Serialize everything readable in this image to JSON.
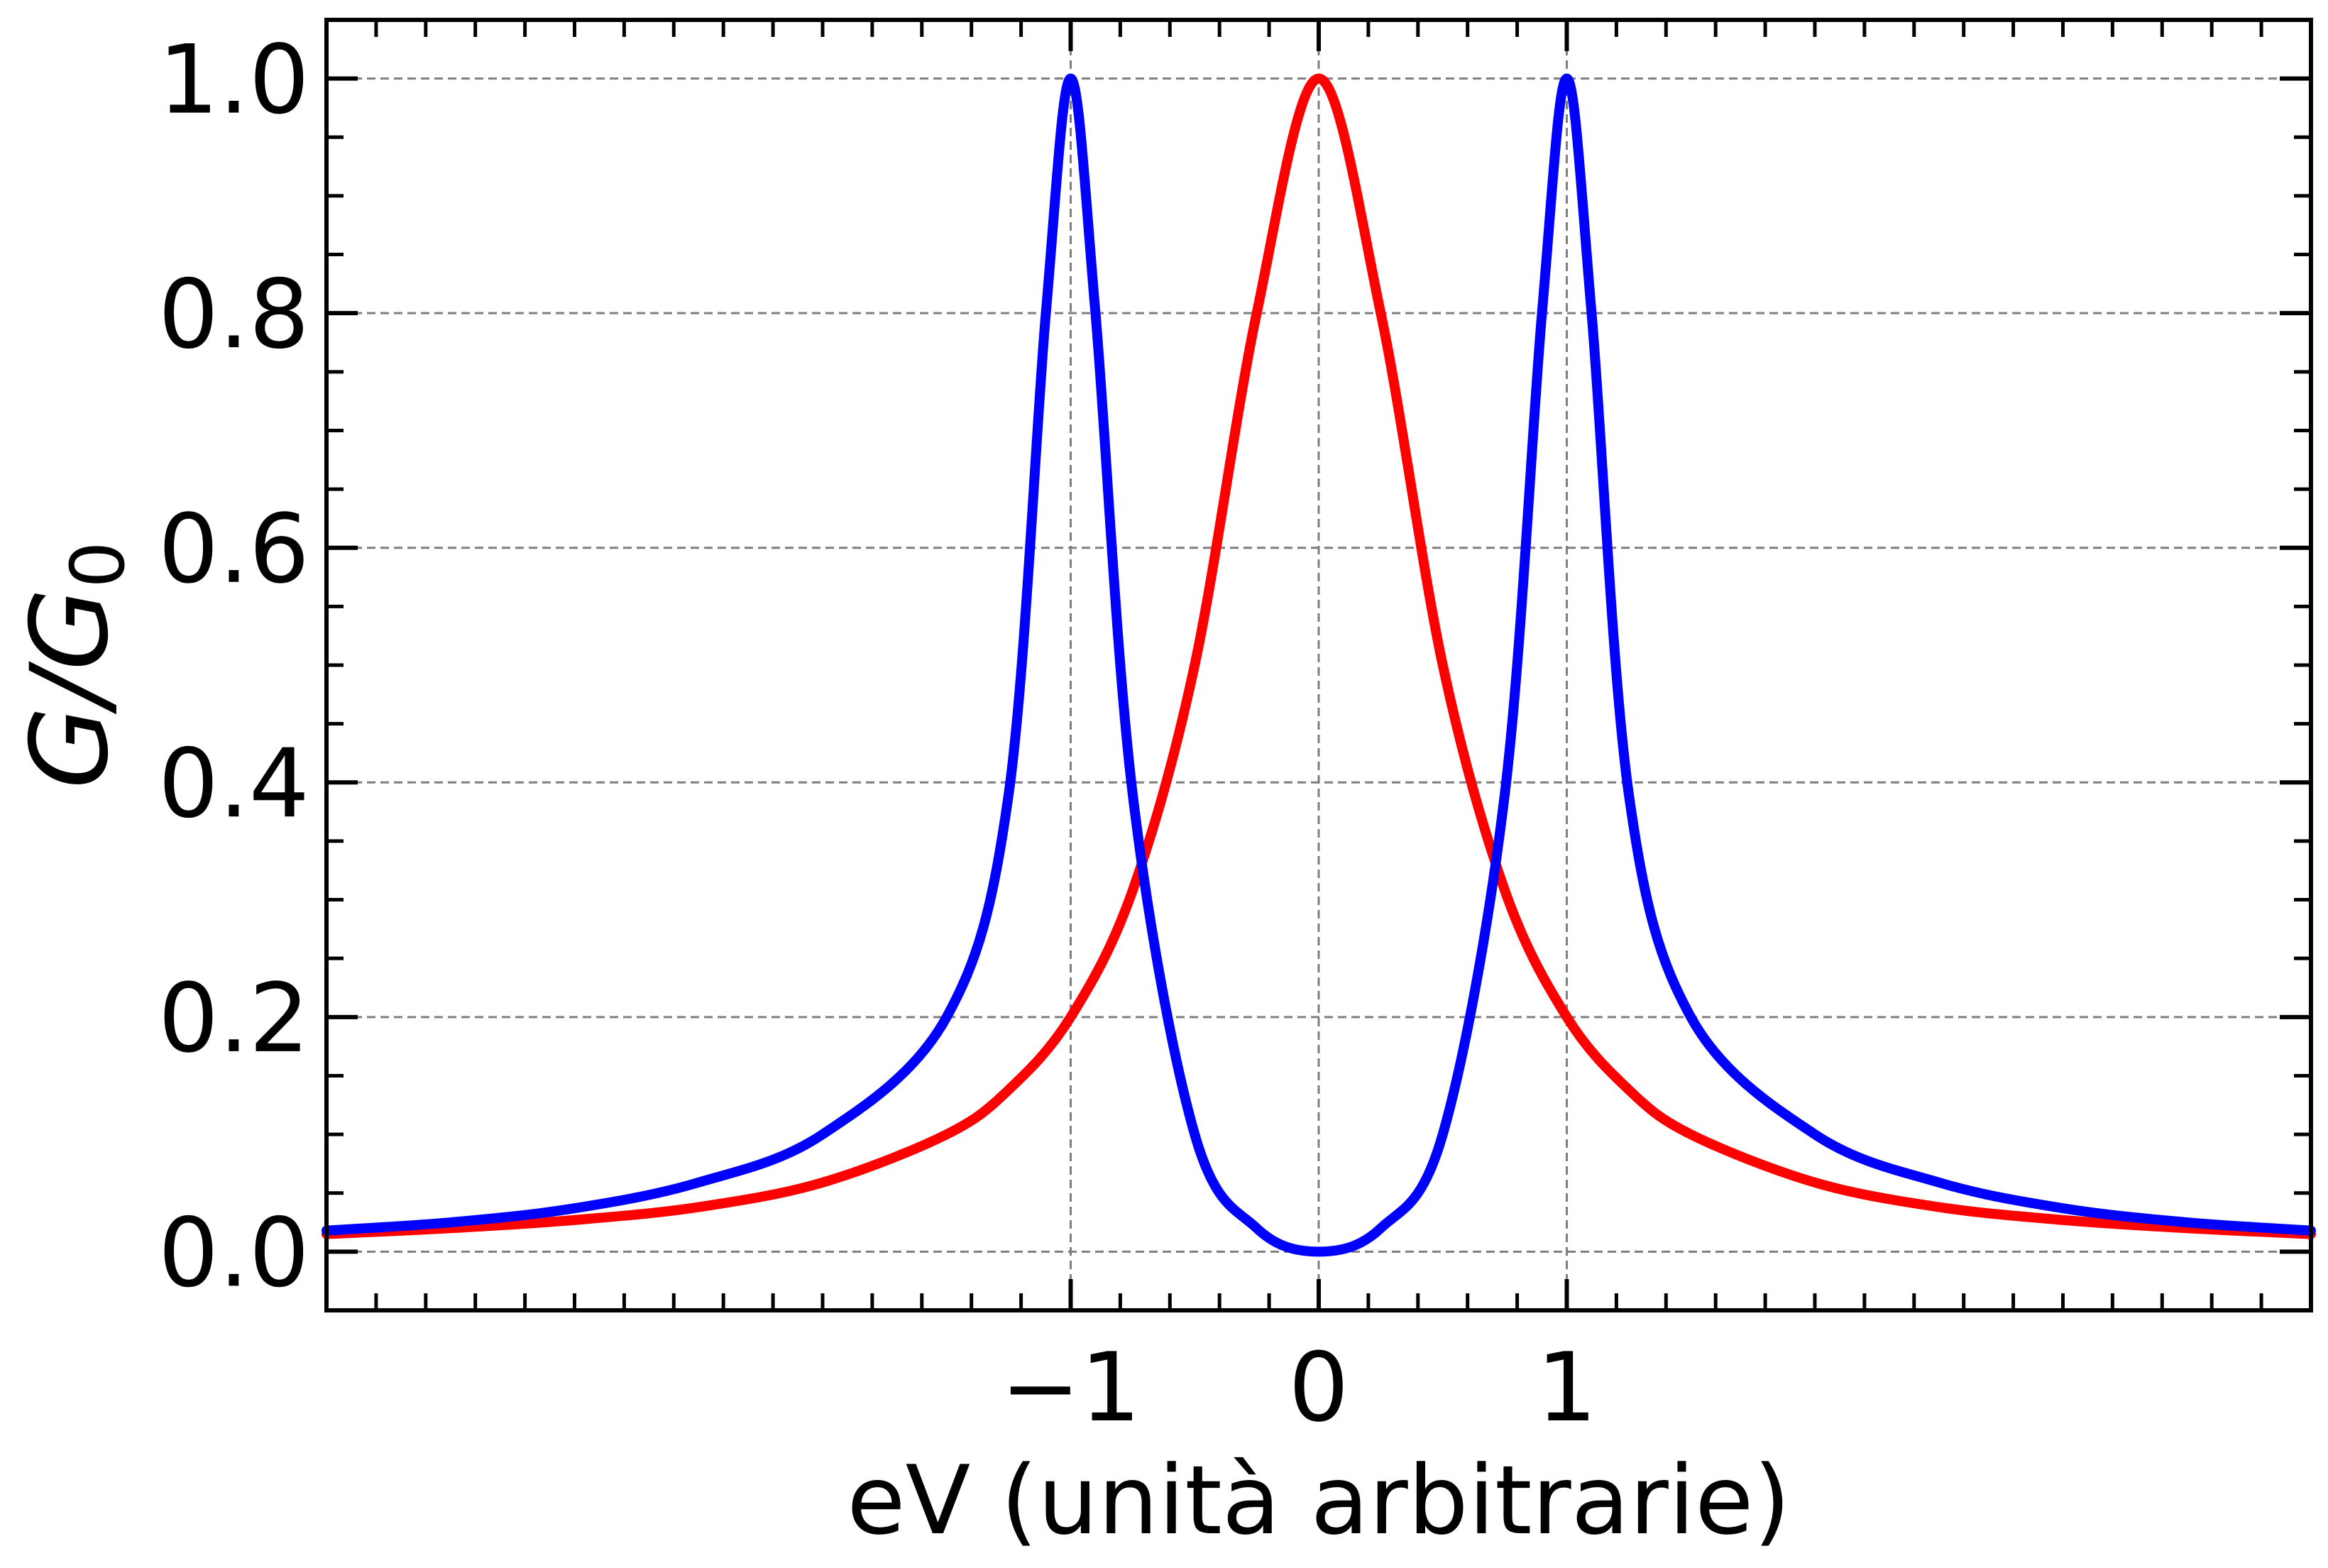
{
  "chart_data": {
    "type": "line",
    "xlabel": "eV (unità arbitrarie)",
    "ylabel": {
      "main": "G/G",
      "subscript": "0"
    },
    "xlim": [
      -4.0,
      4.0
    ],
    "ylim": [
      -0.05,
      1.05
    ],
    "x_ticks": [
      {
        "value": -1,
        "label": "−1"
      },
      {
        "value": 0,
        "label": "0"
      },
      {
        "value": 1,
        "label": "1"
      }
    ],
    "y_ticks": [
      {
        "value": 0.0,
        "label": "0.0"
      },
      {
        "value": 0.2,
        "label": "0.2"
      },
      {
        "value": 0.4,
        "label": "0.4"
      },
      {
        "value": 0.6,
        "label": "0.6"
      },
      {
        "value": 0.8,
        "label": "0.8"
      },
      {
        "value": 1.0,
        "label": "1.0"
      }
    ],
    "grid": true,
    "legend": "none",
    "series": [
      {
        "color": "#ff0000",
        "x": [
          -4.0,
          -3.5,
          -3.0,
          -2.5,
          -2.0,
          -1.5,
          -1.25,
          -1.0,
          -0.75,
          -0.5,
          -0.25,
          0.0,
          0.25,
          0.5,
          0.75,
          1.0,
          1.25,
          1.5,
          2.0,
          2.5,
          3.0,
          3.5,
          4.0
        ],
        "y": [
          0.015,
          0.02,
          0.027,
          0.038,
          0.059,
          0.1,
          0.138,
          0.2,
          0.308,
          0.5,
          0.8,
          1.0,
          0.8,
          0.5,
          0.308,
          0.2,
          0.138,
          0.1,
          0.059,
          0.038,
          0.027,
          0.02,
          0.015
        ]
      },
      {
        "color": "#0000ff",
        "x": [
          -4.0,
          -3.5,
          -3.0,
          -2.5,
          -2.0,
          -1.5,
          -1.25,
          -1.1,
          -1.0,
          -0.9,
          -0.75,
          -0.5,
          -0.25,
          0.0,
          0.25,
          0.5,
          0.75,
          0.9,
          1.0,
          1.1,
          1.25,
          1.5,
          2.0,
          2.5,
          3.0,
          3.5,
          4.0
        ],
        "y": [
          0.018,
          0.025,
          0.037,
          0.059,
          0.1,
          0.2,
          0.39,
          0.8,
          1.0,
          0.8,
          0.39,
          0.1,
          0.02,
          0.0,
          0.02,
          0.1,
          0.39,
          0.8,
          1.0,
          0.8,
          0.39,
          0.2,
          0.1,
          0.059,
          0.037,
          0.025,
          0.018
        ]
      }
    ]
  }
}
